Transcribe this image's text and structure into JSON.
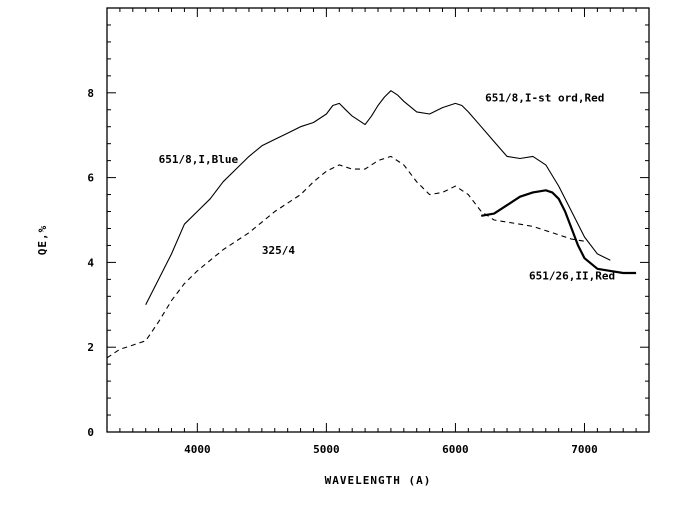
{
  "chart_data": {
    "type": "line",
    "title": "",
    "xlabel": "WAVELENGTH (A)",
    "ylabel": "QE,%",
    "xlim": [
      3300,
      7500
    ],
    "ylim": [
      0,
      10.0
    ],
    "xticks": [
      4000,
      5000,
      6000,
      7000
    ],
    "yticks": [
      0,
      2,
      4,
      6,
      8
    ],
    "grid": false,
    "legend": "none",
    "series": [
      {
        "name": "651/8,I-st ord,Red",
        "style": "solid",
        "x": [
          3600,
          3700,
          3800,
          3900,
          4000,
          4100,
          4200,
          4300,
          4400,
          4500,
          4600,
          4700,
          4800,
          4900,
          5000,
          5050,
          5100,
          5150,
          5200,
          5300,
          5350,
          5400,
          5450,
          5500,
          5550,
          5600,
          5700,
          5800,
          5900,
          6000,
          6050,
          6100,
          6200,
          6300,
          6400,
          6500,
          6600,
          6700,
          6800,
          6900,
          7000,
          7100,
          7200
        ],
        "values": [
          3.0,
          3.6,
          4.2,
          4.9,
          5.2,
          5.5,
          5.9,
          6.2,
          6.5,
          6.75,
          6.9,
          7.05,
          7.2,
          7.3,
          7.5,
          7.7,
          7.75,
          7.6,
          7.45,
          7.25,
          7.45,
          7.7,
          7.9,
          8.05,
          7.95,
          7.8,
          7.55,
          7.5,
          7.65,
          7.75,
          7.7,
          7.55,
          7.2,
          6.85,
          6.5,
          6.45,
          6.5,
          6.3,
          5.8,
          5.2,
          4.6,
          4.2,
          4.05
        ]
      },
      {
        "name": "325/4",
        "style": "dashed",
        "x": [
          3300,
          3400,
          3500,
          3600,
          3700,
          3800,
          3900,
          4000,
          4200,
          4400,
          4600,
          4800,
          4900,
          5000,
          5100,
          5200,
          5300,
          5400,
          5500,
          5600,
          5700,
          5800,
          5900,
          6000,
          6100,
          6200,
          6300,
          6400,
          6500,
          6600,
          6700,
          6800,
          6900,
          7000
        ],
        "values": [
          1.75,
          1.95,
          2.05,
          2.15,
          2.6,
          3.1,
          3.5,
          3.8,
          4.3,
          4.7,
          5.2,
          5.6,
          5.9,
          6.15,
          6.3,
          6.2,
          6.2,
          6.4,
          6.5,
          6.3,
          5.9,
          5.6,
          5.65,
          5.8,
          5.6,
          5.2,
          5.0,
          4.95,
          4.9,
          4.85,
          4.75,
          4.65,
          4.55,
          4.5
        ]
      },
      {
        "name": "651/26,II,Red",
        "style": "solid-thick",
        "x": [
          6200,
          6300,
          6400,
          6500,
          6600,
          6700,
          6750,
          6800,
          6850,
          6900,
          6950,
          7000,
          7100,
          7200,
          7300,
          7400
        ],
        "values": [
          5.1,
          5.15,
          5.35,
          5.55,
          5.65,
          5.7,
          5.65,
          5.5,
          5.2,
          4.8,
          4.4,
          4.1,
          3.85,
          3.8,
          3.75,
          3.75
        ]
      }
    ],
    "annotations": [
      {
        "text": "651/8,I,Blue",
        "x": 3700,
        "y": 6.35
      },
      {
        "text": "325/4",
        "x": 4500,
        "y": 4.2
      },
      {
        "text": "651/8,I-st ord,Red",
        "x": 6230,
        "y": 7.8
      },
      {
        "text": "651/26,II,Red",
        "x": 6570,
        "y": 3.6
      }
    ]
  }
}
